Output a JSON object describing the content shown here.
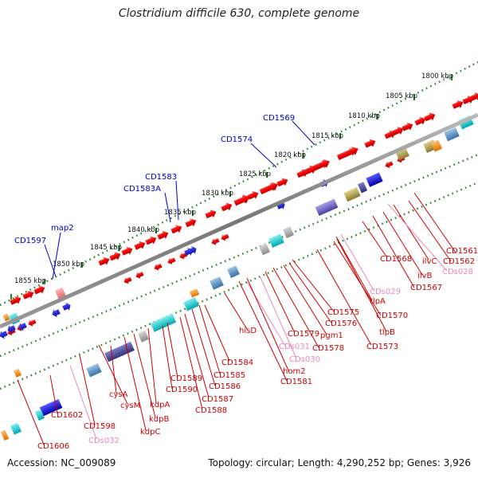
{
  "title": "Clostridium difficile 630, complete genome",
  "footer": {
    "accession": "Accession: NC_009089",
    "stats": "Topology: circular; Length: 4,290,252 bp; Genes: 3,926"
  },
  "colors": {
    "forward_gene": "#ee0000",
    "upper_label": "#0000cc",
    "lower_label": "#cc0000",
    "cds_label": "#ee88bb",
    "backbone": "#888888",
    "tick": "#228822"
  },
  "scale_labels": [
    "1800 kbp",
    "1805 kbp",
    "1810 kbp",
    "1815 kbp",
    "1820 kbp",
    "1825 kbp",
    "1830 kbp",
    "1835 kbp",
    "1840 kbp",
    "1845 kbp",
    "1850 kbp",
    "1855 kbp"
  ],
  "upper_labels": [
    "CD1569",
    "CD1574",
    "CD1583",
    "CD1583A",
    "map2",
    "CD1597"
  ],
  "lower_labels": [
    "CD1561",
    "CD1562",
    "ilvC",
    "CDs028",
    "ilvB",
    "CD1567",
    "CD1568",
    "CDs029",
    "tlpA",
    "CD1570",
    "tlpB",
    "CD1573",
    "CD1575",
    "CD1576",
    "pgm1",
    "CD1578",
    "CD1579",
    "CDs030",
    "CDs031",
    "hisD",
    "hom2",
    "CD1581",
    "CD1584",
    "CD1585",
    "CD1586",
    "CD1587",
    "CD1588",
    "CD1589",
    "CD1590",
    "kdpA",
    "kdpB",
    "kdpC",
    "cysA",
    "cysM",
    "CD1598",
    "CDs032",
    "CD1602",
    "CD1606"
  ]
}
